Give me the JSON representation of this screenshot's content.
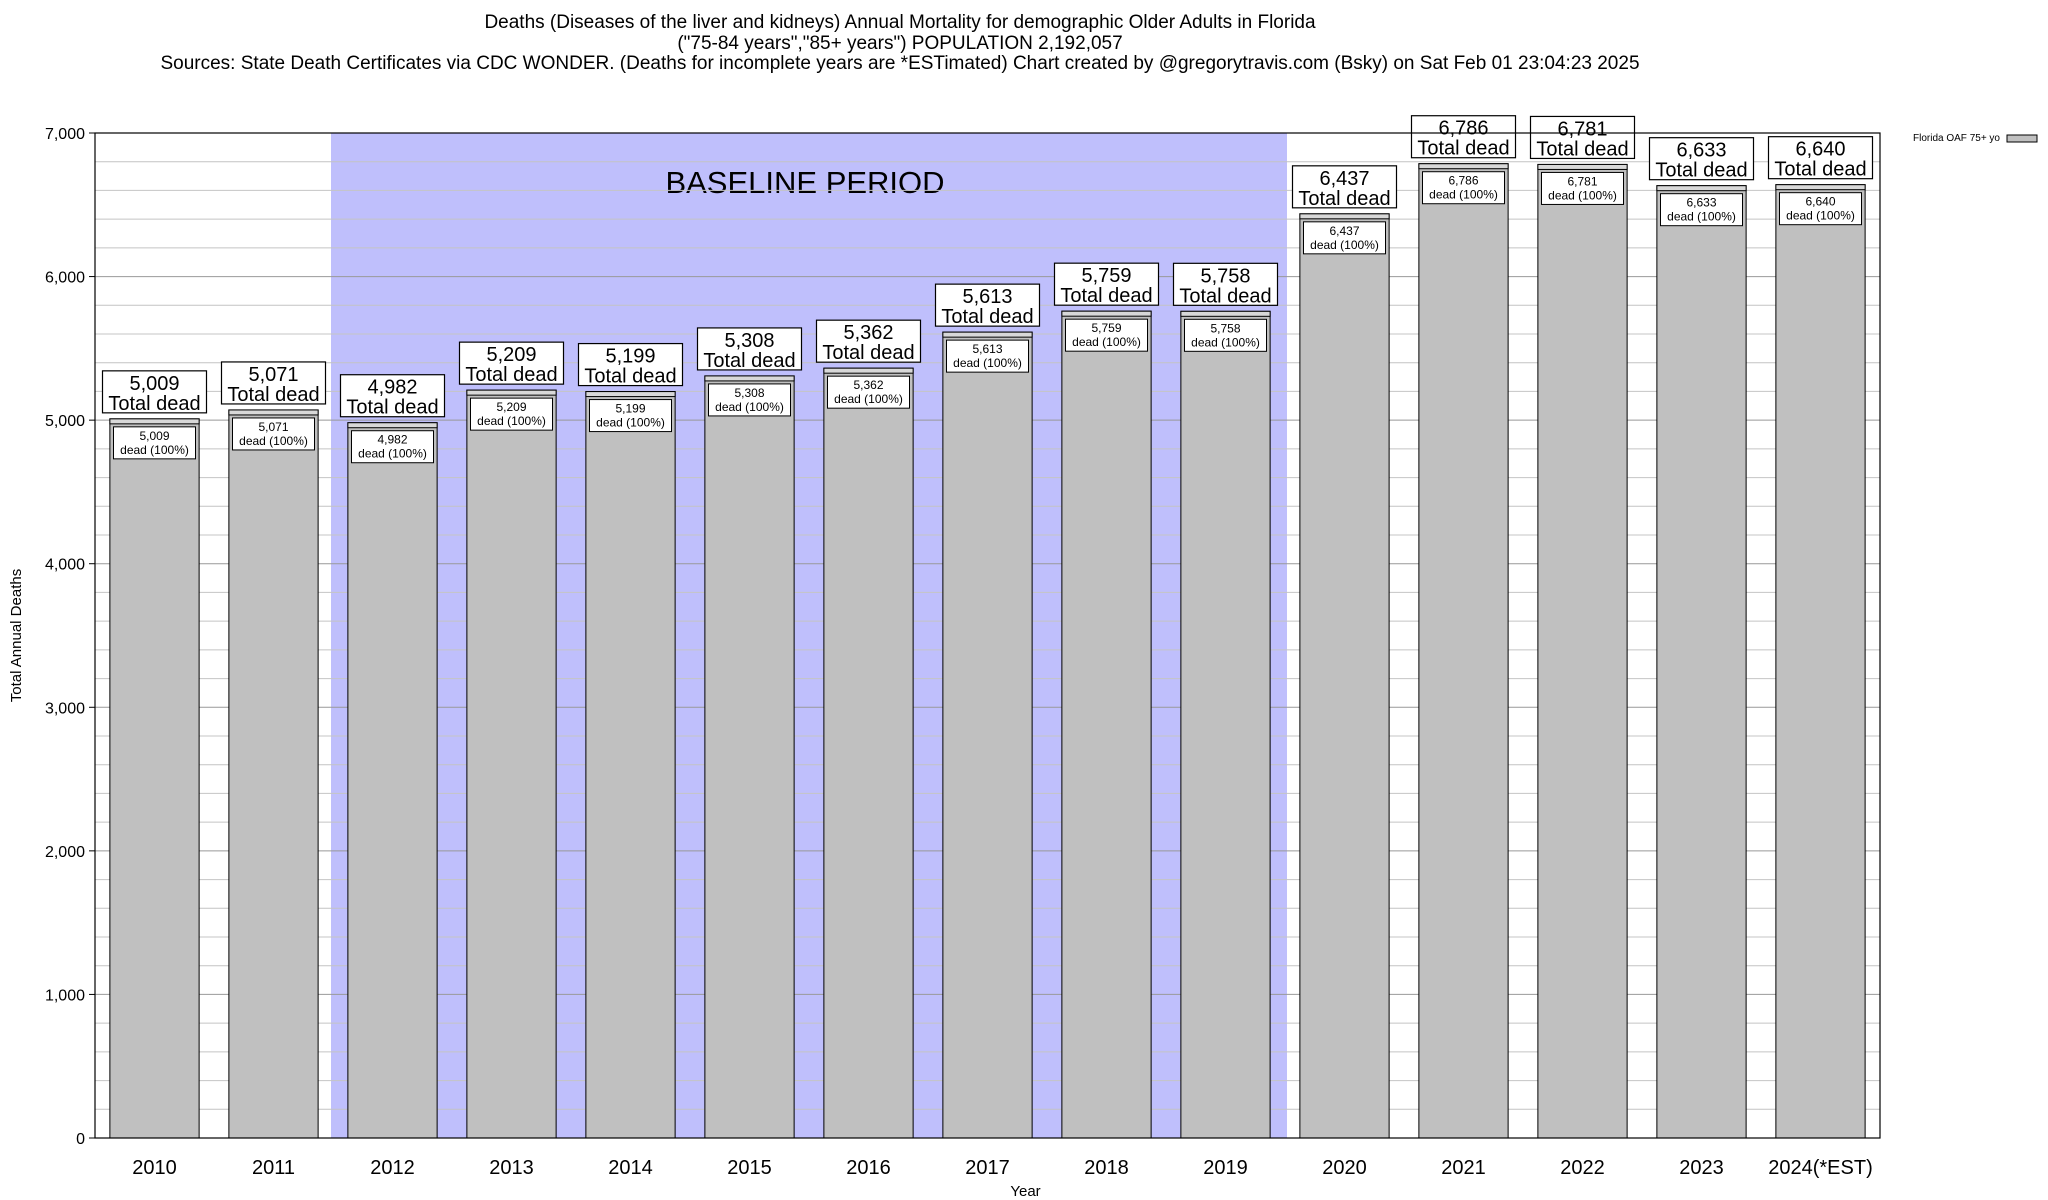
{
  "title_lines": [
    "Deaths (Diseases of the liver and kidneys) Annual Mortality for demographic Older Adults in Florida",
    "(\"75-84 years\",\"85+ years\") POPULATION 2,192,057",
    "Sources: State Death Certificates via CDC WONDER. (Deaths for incomplete years are *ESTimated)                Chart created by @gregorytravis.com (Bsky) on Sat Feb 01 23:04:23 2025"
  ],
  "colors": {
    "bar": "#c0c0c0",
    "baseline": "#bfbffc",
    "grid": "#aaaaaa"
  },
  "chart_data": {
    "type": "bar",
    "categories": [
      "2010",
      "2011",
      "2012",
      "2013",
      "2014",
      "2015",
      "2016",
      "2017",
      "2018",
      "2019",
      "2020",
      "2021",
      "2022",
      "2023",
      "2024(*EST)"
    ],
    "series": [
      {
        "name": "Florida OAF 75+ yo",
        "values": [
          5009,
          5071,
          4982,
          5209,
          5199,
          5308,
          5362,
          5613,
          5759,
          5758,
          6437,
          6786,
          6781,
          6633,
          6640
        ]
      }
    ],
    "value_labels": [
      "5,009",
      "5,071",
      "4,982",
      "5,209",
      "5,199",
      "5,308",
      "5,362",
      "5,613",
      "5,759",
      "5,758",
      "6,437",
      "6,786",
      "6,781",
      "6,633",
      "6,640"
    ],
    "total_label": "Total dead",
    "inner_label": "dead (100%)",
    "xlabel": "Year",
    "ylabel": "Total Annual Deaths",
    "ylim": [
      0,
      7000
    ],
    "yticks": [
      0,
      1000,
      2000,
      3000,
      4000,
      5000,
      6000,
      7000
    ],
    "ytick_labels": [
      "0",
      "1,000",
      "2,000",
      "3,000",
      "4,000",
      "5,000",
      "6,000",
      "7,000"
    ],
    "grid": true,
    "legend_position": "top-right",
    "baseline_period": {
      "label": "BASELINE PERIOD",
      "from": "2012",
      "to": "2019"
    }
  }
}
